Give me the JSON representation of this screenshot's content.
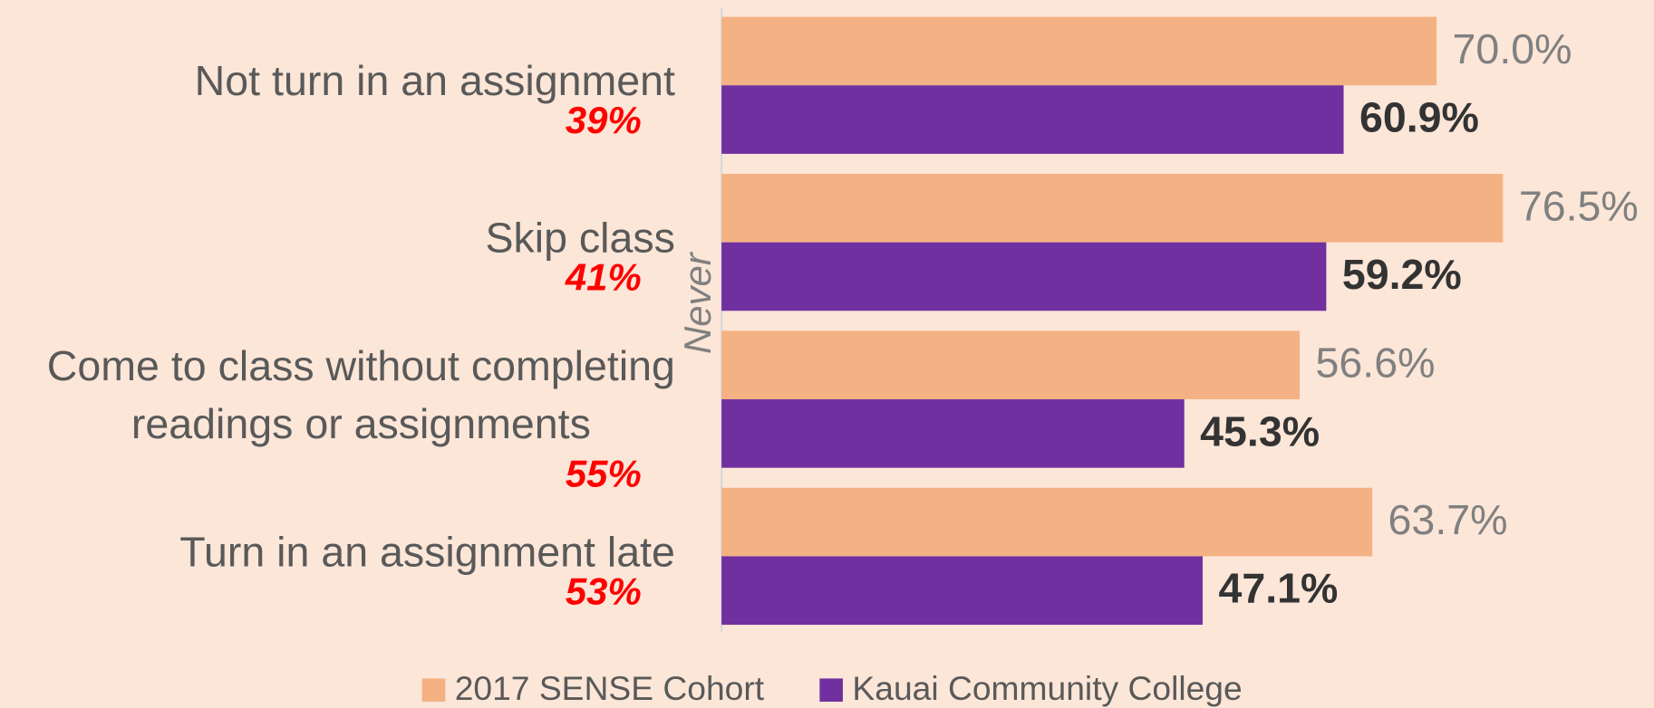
{
  "chart_data": {
    "type": "hbar",
    "y_label": "Never",
    "categories": [
      "Not turn in an assignment",
      "Skip class",
      "Come to class without completing\nreadings or assignments",
      "Turn in an assignment late"
    ],
    "annotations": [
      "39%",
      "41%",
      "55%",
      "53%"
    ],
    "series": [
      {
        "name": "2017 SENSE Cohort",
        "color": "#f4b183",
        "values": [
          70.0,
          76.5,
          56.6,
          63.7
        ],
        "value_labels": [
          "70.0%",
          "76.5%",
          "56.6%",
          "63.7%"
        ]
      },
      {
        "name": "Kauai Community College",
        "color": "#7030a0",
        "values": [
          60.9,
          59.2,
          45.3,
          47.1
        ],
        "value_labels": [
          "60.9%",
          "59.2%",
          "45.3%",
          "47.1%"
        ]
      }
    ],
    "legend": "bottom"
  }
}
